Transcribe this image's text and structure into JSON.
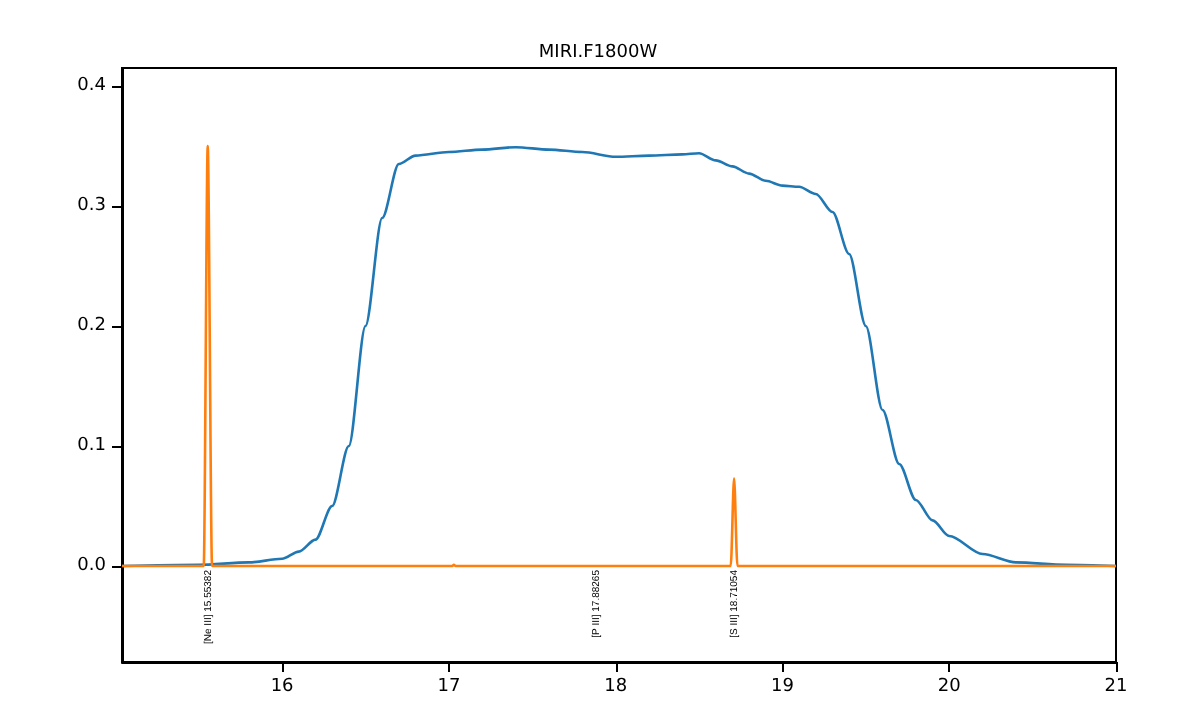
{
  "chart_data": {
    "type": "line",
    "title": "MIRI.F1800W",
    "series": [
      {
        "color": "#1f77b4",
        "x": [
          15.04,
          15.5,
          15.8,
          16.0,
          16.1,
          16.2,
          16.3,
          16.4,
          16.5,
          16.6,
          16.7,
          16.8,
          17.0,
          17.2,
          17.4,
          17.6,
          17.8,
          18.0,
          18.2,
          18.4,
          18.5,
          18.6,
          18.7,
          18.8,
          18.9,
          19.0,
          19.1,
          19.2,
          19.3,
          19.4,
          19.5,
          19.6,
          19.7,
          19.8,
          19.9,
          20.0,
          20.2,
          20.4,
          20.7,
          21.0
        ],
        "values": [
          0.0,
          0.001,
          0.003,
          0.006,
          0.012,
          0.022,
          0.05,
          0.1,
          0.2,
          0.29,
          0.335,
          0.342,
          0.345,
          0.347,
          0.349,
          0.347,
          0.345,
          0.341,
          0.342,
          0.343,
          0.344,
          0.338,
          0.333,
          0.327,
          0.321,
          0.317,
          0.316,
          0.31,
          0.295,
          0.26,
          0.2,
          0.13,
          0.085,
          0.055,
          0.038,
          0.025,
          0.01,
          0.003,
          0.001,
          0.0
        ]
      },
      {
        "color": "#ff7f0e",
        "x": [
          15.04,
          15.53,
          15.554,
          15.58,
          17.02,
          17.03,
          17.04,
          18.69,
          18.71,
          18.73,
          21.0
        ],
        "values": [
          0.0,
          0.0,
          0.35,
          0.0,
          0.0,
          0.001,
          0.0,
          0.0,
          0.073,
          0.0,
          0.0
        ]
      }
    ],
    "xlim": [
      15.04,
      21.0
    ],
    "xticks": [
      16,
      17,
      18,
      19,
      20,
      21
    ],
    "ylim": [
      -0.08,
      0.415
    ],
    "yticks": [
      {
        "value": 0,
        "label": "0.0"
      },
      {
        "value": 0.1,
        "label": "0.1"
      },
      {
        "value": 0.2,
        "label": "0.2"
      },
      {
        "value": 0.3,
        "label": "0.3"
      },
      {
        "value": 0.4,
        "label": "0.4"
      }
    ],
    "annotations": [
      {
        "text": "[Ne III] 15.55382",
        "x": 15.554,
        "y": 0
      },
      {
        "text": "[P III] 17.88265",
        "x": 17.88,
        "y": 0
      },
      {
        "text": "[S III] 18.71054",
        "x": 18.71,
        "y": 0
      }
    ]
  }
}
